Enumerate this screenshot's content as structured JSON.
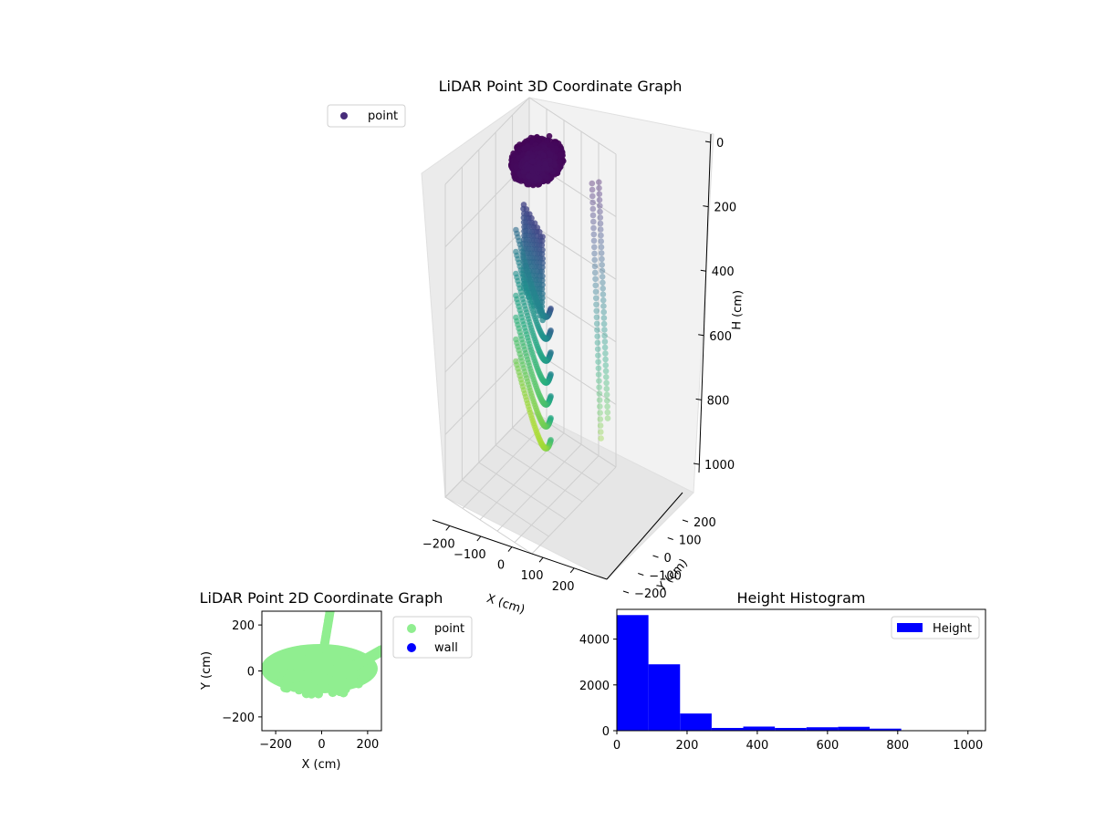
{
  "chart_data": [
    {
      "type": "scatter3d",
      "title": "LiDAR Point 3D Coordinate Graph",
      "xlabel": "X (cm)",
      "ylabel": "Y (cm)",
      "zlabel": "H (cm)",
      "x_ticks": [
        "−200",
        "−100",
        "0",
        "100",
        "200"
      ],
      "y_ticks": [
        "−200",
        "−100",
        "0",
        "100",
        "200"
      ],
      "z_ticks": [
        "0",
        "200",
        "400",
        "600",
        "800",
        "1000"
      ],
      "xlim": [
        -250,
        250
      ],
      "ylim": [
        -250,
        250
      ],
      "zlim": [
        0,
        1000
      ],
      "z_inverted": true,
      "colormap": "viridis",
      "legend": {
        "placement": "upper-left",
        "entries": [
          {
            "label": "point",
            "color": "#472c7a"
          }
        ]
      },
      "series": [
        {
          "name": "point",
          "shape": "dome",
          "radius_cm": 110,
          "z_range": [
            0,
            120
          ],
          "approx_count": 5000
        },
        {
          "name": "point",
          "shape": "arcs",
          "z_range": [
            300,
            850
          ]
        }
      ]
    },
    {
      "type": "scatter",
      "title": "LiDAR Point 2D Coordinate Graph",
      "xlabel": "X (cm)",
      "ylabel": "Y (cm)",
      "x_ticks": [
        "−200",
        "0",
        "200"
      ],
      "y_ticks": [
        "200",
        "0",
        "−200"
      ],
      "xlim": [
        -260,
        260
      ],
      "ylim": [
        -260,
        260
      ],
      "legend": {
        "placement": "outside-right",
        "entries": [
          {
            "label": "point",
            "color": "#90ee90"
          },
          {
            "label": "wall",
            "color": "#0000ff"
          }
        ]
      },
      "series": [
        {
          "name": "point",
          "color": "#90ee90",
          "extent_x": [
            -260,
            260
          ],
          "extent_y": [
            -180,
            260
          ]
        },
        {
          "name": "wall",
          "color": "#0000ff",
          "points": []
        }
      ]
    },
    {
      "type": "histogram",
      "title": "Height Histogram",
      "legend": {
        "placement": "top-right",
        "entries": [
          {
            "label": "Height",
            "color": "#0000ff"
          }
        ]
      },
      "color": "#0000ff",
      "bins": [
        {
          "from": 0,
          "to": 90,
          "count": 5050
        },
        {
          "from": 90,
          "to": 180,
          "count": 2900
        },
        {
          "from": 180,
          "to": 270,
          "count": 750
        },
        {
          "from": 270,
          "to": 360,
          "count": 120
        },
        {
          "from": 360,
          "to": 450,
          "count": 180
        },
        {
          "from": 450,
          "to": 540,
          "count": 120
        },
        {
          "from": 540,
          "to": 630,
          "count": 150
        },
        {
          "from": 630,
          "to": 720,
          "count": 170
        },
        {
          "from": 720,
          "to": 810,
          "count": 90
        },
        {
          "from": 810,
          "to": 900,
          "count": 0
        },
        {
          "from": 900,
          "to": 1000,
          "count": 0
        }
      ],
      "xlim": [
        0,
        1050
      ],
      "ylim": [
        0,
        5300
      ],
      "x_ticks": [
        "0",
        "200",
        "400",
        "600",
        "800",
        "1000"
      ],
      "y_ticks": [
        "0",
        "2000",
        "4000"
      ]
    }
  ]
}
